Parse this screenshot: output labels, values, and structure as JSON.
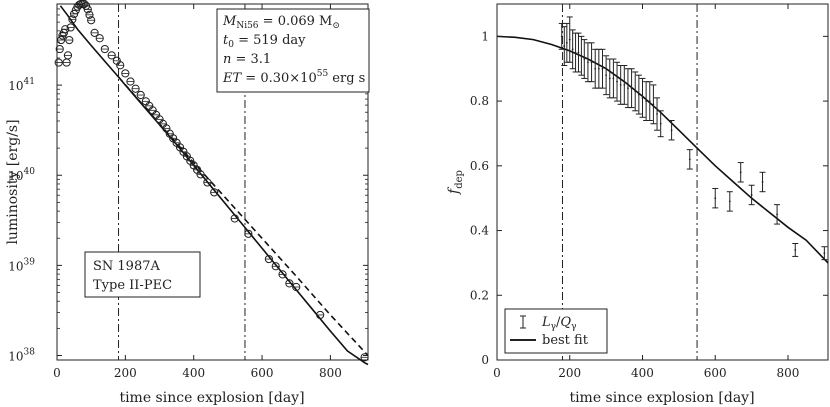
{
  "chart_data": [
    {
      "type": "scatter",
      "title": "",
      "xlabel": "time since explosion [day]",
      "ylabel": "luminosity [erg/s]",
      "xlim": [
        0,
        910
      ],
      "ylim_log10": [
        37.95,
        41.9
      ],
      "yscale": "log",
      "xticks": [
        "0",
        "200",
        "400",
        "600",
        "800"
      ],
      "xtick_values": [
        0,
        200,
        400,
        600,
        800
      ],
      "yticks": [
        {
          "base": "10",
          "exp": "38",
          "value": 38
        },
        {
          "base": "10",
          "exp": "39",
          "value": 39
        },
        {
          "base": "10",
          "exp": "40",
          "value": 40
        },
        {
          "base": "10",
          "exp": "41",
          "value": 41
        }
      ],
      "vlines": [
        180,
        550
      ],
      "observations": {
        "x": [
          5,
          8,
          12,
          16,
          20,
          24,
          28,
          32,
          36,
          40,
          45,
          50,
          55,
          60,
          65,
          70,
          75,
          80,
          85,
          90,
          95,
          100,
          110,
          125,
          140,
          160,
          175,
          185,
          200,
          215,
          230,
          245,
          260,
          270,
          280,
          290,
          300,
          310,
          320,
          330,
          340,
          350,
          360,
          370,
          380,
          390,
          400,
          410,
          420,
          440,
          460,
          520,
          560,
          620,
          640,
          660,
          680,
          700,
          770,
          900
        ],
        "log10L": [
          41.25,
          41.4,
          41.5,
          41.55,
          41.58,
          41.62,
          41.25,
          41.33,
          41.5,
          41.64,
          41.73,
          41.79,
          41.83,
          41.87,
          41.89,
          41.9,
          41.9,
          41.9,
          41.88,
          41.84,
          41.78,
          41.72,
          41.58,
          41.52,
          41.4,
          41.33,
          41.27,
          41.22,
          41.13,
          41.04,
          40.96,
          40.89,
          40.82,
          40.77,
          40.72,
          40.67,
          40.62,
          40.57,
          40.52,
          40.46,
          40.41,
          40.36,
          40.31,
          40.26,
          40.21,
          40.16,
          40.11,
          40.06,
          40.01,
          39.92,
          39.81,
          39.52,
          39.35,
          39.07,
          38.99,
          38.9,
          38.8,
          38.76,
          38.45,
          37.98
        ]
      },
      "model_full": {
        "x": [
          10,
          30,
          60,
          100,
          150,
          180,
          200,
          250,
          300,
          350,
          400,
          450,
          500,
          550,
          600,
          650,
          700,
          750,
          800,
          850,
          900,
          910
        ],
        "log10L": [
          41.88,
          41.78,
          41.62,
          41.44,
          41.22,
          41.09,
          41.0,
          40.78,
          40.56,
          40.34,
          40.11,
          39.88,
          39.65,
          39.42,
          39.19,
          38.96,
          38.73,
          38.5,
          38.27,
          38.05,
          37.92,
          37.9
        ]
      },
      "model_trapped": {
        "x": [
          180,
          300,
          400,
          500,
          600,
          700,
          800,
          910
        ],
        "log10L": [
          41.09,
          40.57,
          40.14,
          39.72,
          39.3,
          38.88,
          38.45,
          38.0
        ]
      },
      "annotations": {
        "param_lines": [
          {
            "sym": "M",
            "sub": "Ni56",
            "rest": " = 0.069 M",
            "sub2": "⊙",
            "sup": ""
          },
          {
            "sym": "t",
            "sub": "0",
            "rest": " = 519 day",
            "sub2": "",
            "sup": ""
          },
          {
            "sym": "n",
            "sub": "",
            "rest": "  = 3.1",
            "sub2": "",
            "sup": ""
          },
          {
            "sym": "ET",
            "sub": "",
            "rest": " = 0.30×10",
            "sub2": "",
            "sup": "55",
            "tail": " erg s"
          }
        ],
        "object_name": "SN 1987A",
        "object_type": "Type II-PEC"
      }
    },
    {
      "type": "scatter",
      "title": "",
      "xlabel": "time since explosion [day]",
      "ylabel_main": "f",
      "ylabel_sub": "dep",
      "xlim": [
        0,
        910
      ],
      "ylim": [
        0,
        1.1
      ],
      "xticks": [
        "0",
        "200",
        "400",
        "600",
        "800"
      ],
      "xtick_values": [
        0,
        200,
        400,
        600,
        800
      ],
      "yticks": [
        "0",
        "0.2",
        "0.4",
        "0.6",
        "0.8",
        "1"
      ],
      "ytick_values": [
        0,
        0.2,
        0.4,
        0.6,
        0.8,
        1.0
      ],
      "vlines": [
        180,
        550
      ],
      "points": {
        "x": [
          178,
          185,
          192,
          200,
          208,
          216,
          224,
          232,
          240,
          250,
          260,
          270,
          280,
          290,
          300,
          310,
          320,
          330,
          340,
          350,
          360,
          370,
          380,
          390,
          400,
          410,
          420,
          430,
          440,
          450,
          480,
          530,
          600,
          640,
          670,
          700,
          730,
          770,
          820,
          900
        ],
        "y": [
          1.0,
          0.97,
          0.98,
          0.99,
          0.96,
          0.95,
          0.95,
          0.94,
          0.93,
          0.92,
          0.92,
          0.9,
          0.9,
          0.9,
          0.88,
          0.87,
          0.87,
          0.86,
          0.85,
          0.85,
          0.84,
          0.84,
          0.83,
          0.82,
          0.81,
          0.8,
          0.8,
          0.79,
          0.76,
          0.73,
          0.71,
          0.62,
          0.5,
          0.49,
          0.58,
          0.51,
          0.55,
          0.45,
          0.34,
          0.33
        ],
        "err": [
          0.04,
          0.06,
          0.06,
          0.07,
          0.06,
          0.06,
          0.06,
          0.06,
          0.06,
          0.06,
          0.06,
          0.06,
          0.06,
          0.06,
          0.06,
          0.06,
          0.06,
          0.06,
          0.06,
          0.06,
          0.06,
          0.06,
          0.06,
          0.06,
          0.06,
          0.06,
          0.06,
          0.06,
          0.05,
          0.04,
          0.03,
          0.03,
          0.03,
          0.03,
          0.03,
          0.03,
          0.03,
          0.03,
          0.02,
          0.02
        ]
      },
      "best_fit": {
        "x": [
          0,
          50,
          100,
          150,
          200,
          250,
          300,
          350,
          400,
          450,
          500,
          550,
          600,
          650,
          700,
          750,
          800,
          850,
          910
        ],
        "y": [
          1.0,
          0.997,
          0.99,
          0.975,
          0.955,
          0.93,
          0.9,
          0.86,
          0.815,
          0.765,
          0.71,
          0.655,
          0.6,
          0.55,
          0.5,
          0.455,
          0.41,
          0.37,
          0.3
        ]
      },
      "legend": {
        "position": "bottom-left",
        "entries": [
          {
            "label_main": "L",
            "label_sub": "γ",
            "label_mid": "/",
            "label_main2": "Q",
            "label_sub2": "γ"
          },
          {
            "label": "best fit"
          }
        ]
      }
    }
  ]
}
